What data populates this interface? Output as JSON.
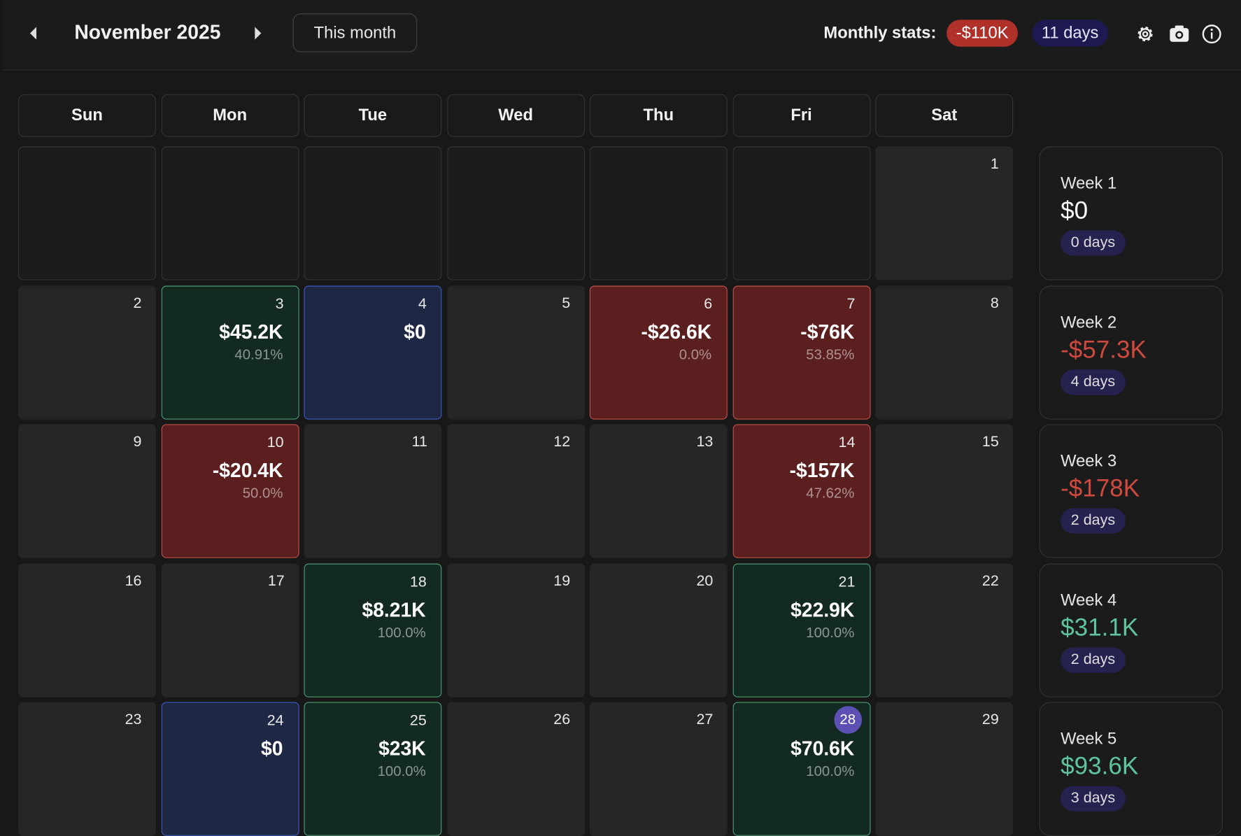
{
  "header": {
    "title": "November 2025",
    "today_button": "This month",
    "stats_label": "Monthly stats:",
    "stats_pnl": "-$110K",
    "stats_days": "11 days"
  },
  "calendar": {
    "weekdays": [
      "Sun",
      "Mon",
      "Tue",
      "Wed",
      "Thu",
      "Fri",
      "Sat"
    ],
    "weeks": [
      [
        null,
        null,
        null,
        null,
        null,
        null,
        {
          "day": 1
        }
      ],
      [
        {
          "day": 2
        },
        {
          "day": 3,
          "pnl": "$45.2K",
          "pct": "40.91%",
          "status": "win"
        },
        {
          "day": 4,
          "pnl": "$0",
          "status": "even"
        },
        {
          "day": 5
        },
        {
          "day": 6,
          "pnl": "-$26.6K",
          "pct": "0.0%",
          "status": "loss"
        },
        {
          "day": 7,
          "pnl": "-$76K",
          "pct": "53.85%",
          "status": "loss"
        },
        {
          "day": 8
        }
      ],
      [
        {
          "day": 9
        },
        {
          "day": 10,
          "pnl": "-$20.4K",
          "pct": "50.0%",
          "status": "loss"
        },
        {
          "day": 11
        },
        {
          "day": 12
        },
        {
          "day": 13
        },
        {
          "day": 14,
          "pnl": "-$157K",
          "pct": "47.62%",
          "status": "loss"
        },
        {
          "day": 15
        }
      ],
      [
        {
          "day": 16
        },
        {
          "day": 17
        },
        {
          "day": 18,
          "pnl": "$8.21K",
          "pct": "100.0%",
          "status": "win"
        },
        {
          "day": 19
        },
        {
          "day": 20
        },
        {
          "day": 21,
          "pnl": "$22.9K",
          "pct": "100.0%",
          "status": "win"
        },
        {
          "day": 22
        }
      ],
      [
        {
          "day": 23
        },
        {
          "day": 24,
          "pnl": "$0",
          "status": "even"
        },
        {
          "day": 25,
          "pnl": "$23K",
          "pct": "100.0%",
          "status": "win"
        },
        {
          "day": 26
        },
        {
          "day": 27
        },
        {
          "day": 28,
          "pnl": "$70.6K",
          "pct": "100.0%",
          "status": "win",
          "today": true
        },
        {
          "day": 29
        }
      ]
    ],
    "summaries": [
      {
        "label": "Week 1",
        "pnl": "$0",
        "days": "0 days",
        "status": "even"
      },
      {
        "label": "Week 2",
        "pnl": "-$57.3K",
        "days": "4 days",
        "status": "loss"
      },
      {
        "label": "Week 3",
        "pnl": "-$178K",
        "days": "2 days",
        "status": "loss"
      },
      {
        "label": "Week 4",
        "pnl": "$31.1K",
        "days": "2 days",
        "status": "win"
      },
      {
        "label": "Week 5",
        "pnl": "$93.6K",
        "days": "3 days",
        "status": "win"
      }
    ]
  }
}
